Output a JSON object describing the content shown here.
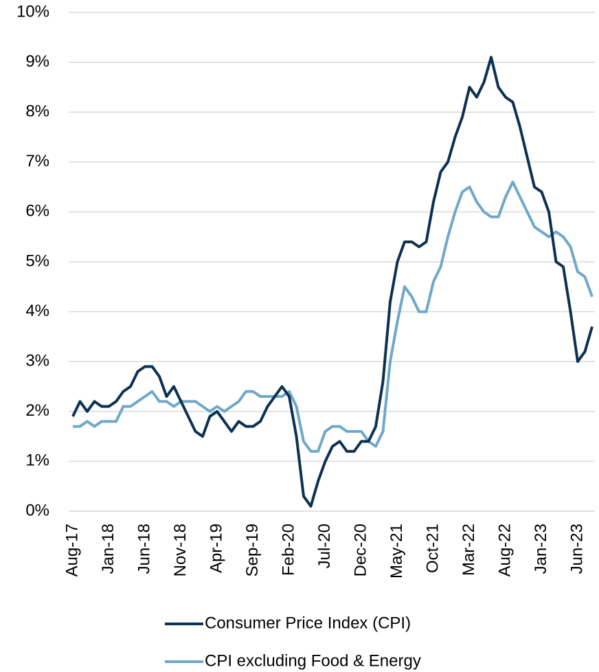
{
  "chart_data": {
    "type": "line",
    "categories": [
      "Aug-17",
      null,
      null,
      null,
      null,
      "Jan-18",
      null,
      null,
      null,
      null,
      "Jun-18",
      null,
      null,
      null,
      null,
      "Nov-18",
      null,
      null,
      null,
      null,
      "Apr-19",
      null,
      null,
      null,
      null,
      "Sep-19",
      null,
      null,
      null,
      null,
      "Feb-20",
      null,
      null,
      null,
      null,
      "Jul-20",
      null,
      null,
      null,
      null,
      "Dec-20",
      null,
      null,
      null,
      null,
      "May-21",
      null,
      null,
      null,
      null,
      "Oct-21",
      null,
      null,
      null,
      null,
      "Mar-22",
      null,
      null,
      null,
      null,
      "Aug-22",
      null,
      null,
      null,
      null,
      "Jan-23",
      null,
      null,
      null,
      null,
      "Jun-23",
      null,
      null
    ],
    "series": [
      {
        "name": "Consumer Price Index (CPI)",
        "color": "#0d3152",
        "values": [
          1.9,
          2.2,
          2.0,
          2.2,
          2.1,
          2.1,
          2.2,
          2.4,
          2.5,
          2.8,
          2.9,
          2.9,
          2.7,
          2.3,
          2.5,
          2.2,
          1.9,
          1.6,
          1.5,
          1.9,
          2.0,
          1.8,
          1.6,
          1.8,
          1.7,
          1.7,
          1.8,
          2.1,
          2.3,
          2.5,
          2.3,
          1.5,
          0.3,
          0.1,
          0.6,
          1.0,
          1.3,
          1.4,
          1.2,
          1.2,
          1.4,
          1.4,
          1.7,
          2.6,
          4.2,
          5.0,
          5.4,
          5.4,
          5.3,
          5.4,
          6.2,
          6.8,
          7.0,
          7.5,
          7.9,
          8.5,
          8.3,
          8.6,
          9.1,
          8.5,
          8.3,
          8.2,
          7.7,
          7.1,
          6.5,
          6.4,
          6.0,
          5.0,
          4.9,
          4.0,
          3.0,
          3.2,
          3.7
        ]
      },
      {
        "name": "CPI excluding Food & Energy",
        "color": "#6fa8c8",
        "values": [
          1.7,
          1.7,
          1.8,
          1.7,
          1.8,
          1.8,
          1.8,
          2.1,
          2.1,
          2.2,
          2.3,
          2.4,
          2.2,
          2.2,
          2.1,
          2.2,
          2.2,
          2.2,
          2.1,
          2.0,
          2.1,
          2.0,
          2.1,
          2.2,
          2.4,
          2.4,
          2.3,
          2.3,
          2.3,
          2.3,
          2.4,
          2.1,
          1.4,
          1.2,
          1.2,
          1.6,
          1.7,
          1.7,
          1.6,
          1.6,
          1.6,
          1.4,
          1.3,
          1.6,
          3.0,
          3.8,
          4.5,
          4.3,
          4.0,
          4.0,
          4.6,
          4.9,
          5.5,
          6.0,
          6.4,
          6.5,
          6.2,
          6.0,
          5.9,
          5.9,
          6.3,
          6.6,
          6.3,
          6.0,
          5.7,
          5.6,
          5.5,
          5.6,
          5.5,
          5.3,
          4.8,
          4.7,
          4.3
        ]
      }
    ],
    "ylim": [
      0,
      10
    ],
    "yticks": [
      {
        "value": 0,
        "label": "0%"
      },
      {
        "value": 1,
        "label": "1%"
      },
      {
        "value": 2,
        "label": "2%"
      },
      {
        "value": 3,
        "label": "3%"
      },
      {
        "value": 4,
        "label": "4%"
      },
      {
        "value": 5,
        "label": "5%"
      },
      {
        "value": 6,
        "label": "6%"
      },
      {
        "value": 7,
        "label": "7%"
      },
      {
        "value": 8,
        "label": "8%"
      },
      {
        "value": 9,
        "label": "9%"
      },
      {
        "value": 10,
        "label": "10%"
      }
    ],
    "grid": true,
    "legend": "bottom"
  }
}
